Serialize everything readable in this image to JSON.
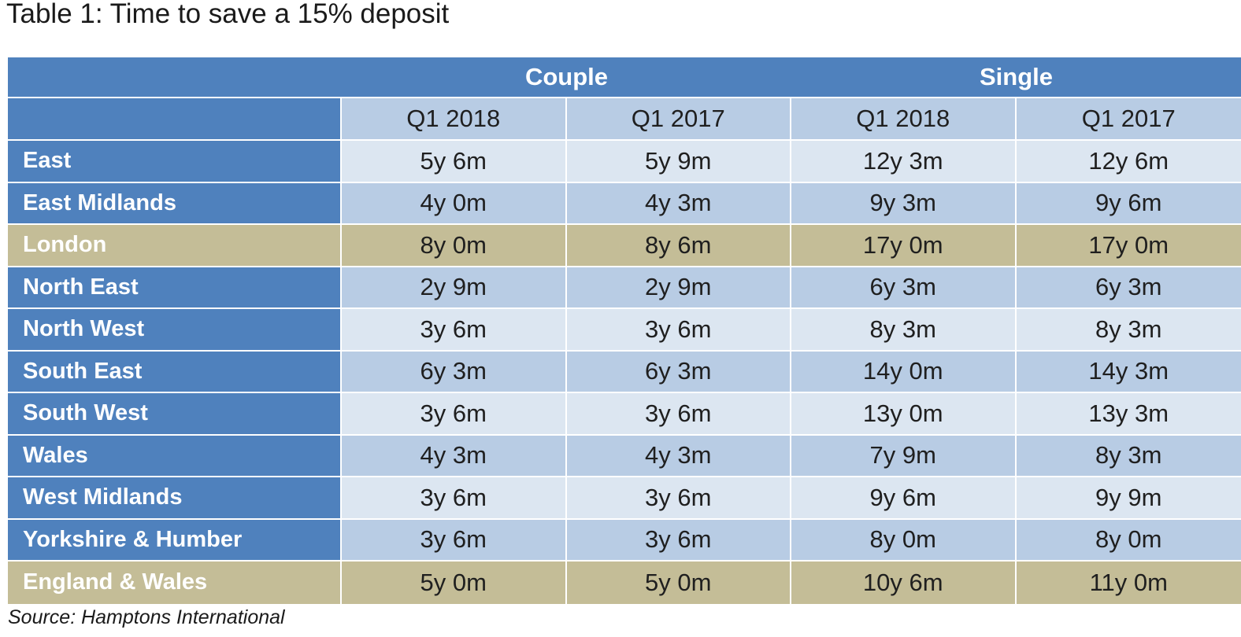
{
  "title": "Table 1: Time to save a 15% deposit",
  "groups": [
    "Couple",
    "Single"
  ],
  "periods": [
    "Q1 2018",
    "Q1 2017",
    "Q1 2018",
    "Q1 2017"
  ],
  "rows": [
    {
      "region": "East",
      "values": [
        "5y 6m",
        "5y 9m",
        "12y 3m",
        "12y 6m"
      ],
      "highlight": false
    },
    {
      "region": "East Midlands",
      "values": [
        "4y 0m",
        "4y 3m",
        "9y 3m",
        "9y 6m"
      ],
      "highlight": false
    },
    {
      "region": "London",
      "values": [
        "8y 0m",
        "8y 6m",
        "17y 0m",
        "17y 0m"
      ],
      "highlight": true
    },
    {
      "region": "North East",
      "values": [
        "2y 9m",
        "2y 9m",
        "6y 3m",
        "6y 3m"
      ],
      "highlight": false
    },
    {
      "region": "North West",
      "values": [
        "3y 6m",
        "3y 6m",
        "8y 3m",
        "8y 3m"
      ],
      "highlight": false
    },
    {
      "region": "South East",
      "values": [
        "6y 3m",
        "6y 3m",
        "14y 0m",
        "14y 3m"
      ],
      "highlight": false
    },
    {
      "region": "South West",
      "values": [
        "3y 6m",
        "3y 6m",
        "13y 0m",
        "13y 3m"
      ],
      "highlight": false
    },
    {
      "region": "Wales",
      "values": [
        "4y 3m",
        "4y 3m",
        "7y 9m",
        "8y 3m"
      ],
      "highlight": false
    },
    {
      "region": "West Midlands",
      "values": [
        "3y 6m",
        "3y 6m",
        "9y 6m",
        "9y 9m"
      ],
      "highlight": false
    },
    {
      "region": "Yorkshire & Humber",
      "values": [
        "3y 6m",
        "3y 6m",
        "8y 0m",
        "8y 0m"
      ],
      "highlight": false
    },
    {
      "region": "England & Wales",
      "values": [
        "5y 0m",
        "5y 0m",
        "10y 6m",
        "11y 0m"
      ],
      "highlight": true
    }
  ],
  "source": "Source: Hamptons International",
  "colors": {
    "header_blue": "#4f81bd",
    "light_blue": "#dce6f1",
    "mid_blue": "#b8cce4",
    "highlight_tan": "#c4bd97"
  }
}
